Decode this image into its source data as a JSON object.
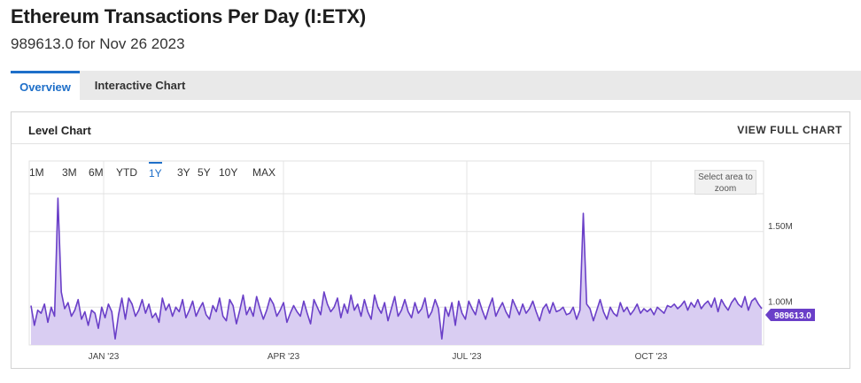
{
  "page": {
    "title": "Ethereum Transactions Per Day (I:ETX)",
    "subtitle": "989613.0 for Nov 26 2023"
  },
  "tabs": [
    {
      "label": "Overview",
      "active": true
    },
    {
      "label": "Interactive Chart",
      "active": false
    }
  ],
  "panel": {
    "title": "Level Chart",
    "view_full_label": "VIEW FULL CHART",
    "zoom_hint": "Select area to zoom"
  },
  "ranges": [
    "1M",
    "3M",
    "6M",
    "YTD",
    "1Y",
    "3Y",
    "5Y",
    "10Y",
    "MAX"
  ],
  "active_range": "1Y",
  "colors": {
    "series_line": "#6a3fc8",
    "series_fill": "#d9cdf2",
    "accent": "#1e6fc9",
    "grid": "#e4e4e4"
  },
  "chart_data": {
    "type": "area",
    "title": "Ethereum Transactions Per Day (I:ETX)",
    "x_labels": [
      "JAN '23",
      "APR '23",
      "JUL '23",
      "OCT '23"
    ],
    "y_labels": [
      "1.50M",
      "1.00M"
    ],
    "ylim": [
      0.75,
      1.75
    ],
    "y_unit": "M",
    "grid": true,
    "last_value_label": "989613.0",
    "series": [
      {
        "values": [
          1.01,
          0.88,
          0.98,
          0.96,
          1.02,
          0.9,
          1.0,
          0.94,
          1.72,
          1.1,
          0.99,
          1.03,
          0.94,
          0.98,
          1.05,
          0.92,
          0.97,
          0.88,
          0.98,
          0.96,
          0.86,
          1.0,
          0.93,
          1.02,
          0.97,
          0.79,
          0.95,
          1.06,
          0.92,
          1.06,
          1.02,
          0.94,
          0.98,
          1.05,
          0.96,
          1.02,
          0.93,
          0.96,
          0.9,
          1.06,
          0.98,
          1.02,
          0.94,
          1.0,
          0.97,
          1.05,
          0.93,
          0.98,
          1.04,
          0.94,
          0.99,
          1.03,
          0.95,
          0.92,
          1.01,
          0.97,
          1.06,
          0.94,
          0.91,
          1.05,
          1.01,
          0.89,
          0.98,
          1.08,
          0.95,
          1.0,
          0.94,
          1.07,
          0.99,
          0.92,
          0.98,
          1.06,
          1.02,
          0.94,
          0.98,
          1.03,
          0.9,
          0.96,
          1.01,
          0.97,
          0.94,
          1.04,
          0.96,
          0.89,
          1.05,
          1.0,
          0.95,
          1.1,
          1.02,
          0.97,
          1.0,
          1.06,
          0.93,
          1.02,
          0.96,
          1.08,
          0.98,
          1.02,
          0.94,
          1.05,
          0.97,
          0.92,
          1.08,
          1.0,
          0.96,
          1.03,
          0.91,
          0.99,
          1.07,
          0.94,
          0.98,
          1.05,
          0.97,
          0.93,
          1.03,
          0.96,
          0.99,
          1.06,
          0.93,
          0.97,
          1.05,
          0.99,
          0.79,
          1.0,
          0.94,
          1.03,
          0.88,
          1.04,
          0.96,
          0.92,
          1.04,
          0.99,
          0.95,
          1.05,
          0.98,
          0.92,
          1.0,
          1.06,
          0.94,
          0.99,
          1.03,
          0.97,
          0.93,
          1.05,
          1.0,
          0.95,
          1.02,
          0.96,
          0.99,
          1.04,
          0.97,
          0.91,
          0.99,
          1.02,
          0.96,
          1.03,
          0.97,
          0.98,
          1.0,
          0.95,
          0.96,
          1.0,
          0.92,
          0.98,
          1.62,
          1.02,
          0.99,
          0.91,
          0.98,
          1.05,
          0.97,
          0.92,
          1.0,
          0.96,
          0.94,
          1.03,
          0.97,
          1.0,
          0.95,
          0.98,
          1.02,
          0.96,
          0.99,
          0.97,
          0.99,
          0.95,
          1.0,
          0.98,
          0.96,
          1.01,
          1.0,
          1.02,
          0.99,
          1.01,
          1.04,
          0.98,
          1.03,
          1.0,
          1.05,
          0.99,
          1.02,
          1.04,
          1.0,
          1.06,
          0.97,
          1.05,
          1.01,
          0.98,
          1.03,
          1.06,
          1.02,
          1.0,
          1.07,
          0.98,
          1.04,
          1.06,
          1.02,
          0.99
        ]
      }
    ]
  }
}
